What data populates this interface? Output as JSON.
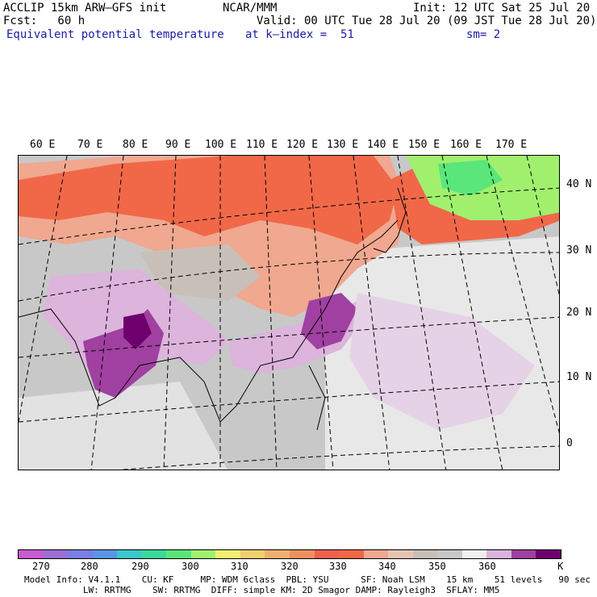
{
  "header": {
    "line1_left": "ACCLIP 15km ARW–GFS init",
    "line1_center": "NCAR/MMM",
    "line1_right": "Init: 12 UTC Sat 25 Jul 20",
    "line2_left": "Fcst:   60 h",
    "line2_right": "Valid: 00 UTC Tue 28 Jul 20 (09 JST Tue 28 Jul 20)",
    "line3_left": "Equivalent potential temperature",
    "line3_center": "at k–index =  51",
    "line3_right": "sm= 2"
  },
  "map": {
    "lon_labels": [
      "60 E",
      "70 E",
      "80 E",
      "90 E",
      "100 E",
      "110 E",
      "120 E",
      "130 E",
      "140 E",
      "150 E",
      "160 E",
      "170 E"
    ],
    "lat_labels": [
      "40 N",
      "30 N",
      "20 N",
      "10 N",
      "0"
    ]
  },
  "colorbar": {
    "colors": [
      "#c85ad2",
      "#9b6fd6",
      "#7a7ee6",
      "#5a96e6",
      "#3cc8c8",
      "#3cd89c",
      "#5ae67a",
      "#a0f06e",
      "#f0f070",
      "#f0d070",
      "#f0b070",
      "#f09060",
      "#f06050",
      "#f06848",
      "#f0a890",
      "#e6c4b4",
      "#c8c0b8",
      "#c8c8c8",
      "#f0f0f0",
      "#dcb4dc",
      "#a040a0",
      "#6e006e"
    ],
    "tick_labels": [
      "270",
      "280",
      "290",
      "300",
      "310",
      "320",
      "330",
      "340",
      "350",
      "360",
      "K"
    ],
    "unit": "K"
  },
  "footer": {
    "line1": "Model Info: V4.1.1    CU: KF     MP: WDM 6class  PBL: YSU      SF: Noah LSM    15 km    51 levels   90 sec",
    "line2": "           LW: RRTMG    SW: RRTMG  DIFF: simple KM: 2D Smagor DAMP: Rayleigh3  SFLAY: MM5"
  }
}
